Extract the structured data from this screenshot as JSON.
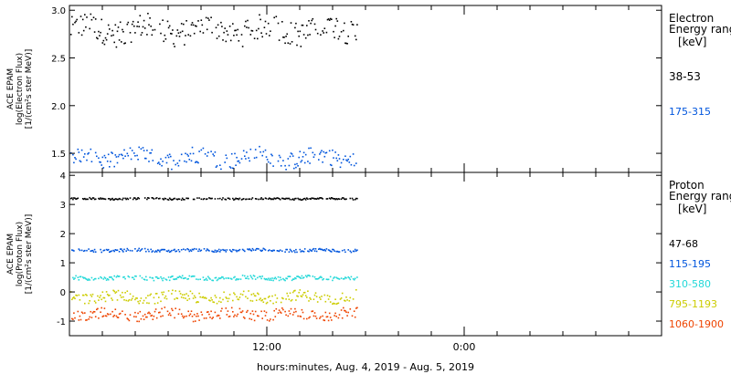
{
  "xaxis": {
    "label": "hours:minutes, Aug.  4, 2019 - Aug.  5, 2019",
    "range_hours": [
      0,
      36
    ],
    "ticks": [
      {
        "hour": 12,
        "label": "12:00"
      },
      {
        "hour": 24,
        "label": "0:00"
      }
    ],
    "data_end_hour": 17.5
  },
  "chart_data": [
    {
      "type": "scatter",
      "panel": "electron",
      "ylabel_lines": [
        "ACE EPAM",
        "log(Electron Flux)",
        "[1/(cm²s ster MeV)]"
      ],
      "ylim": [
        1.3,
        3.05
      ],
      "yticks": [
        1.5,
        2.0,
        2.5,
        3.0
      ],
      "ytick_labels": [
        "1.5",
        "2.0",
        "2.5",
        "3.0"
      ],
      "legend_title": [
        "Electron",
        "Energy ranges",
        "[keV]"
      ],
      "series": [
        {
          "name": "38-53",
          "color": "#000000",
          "center": 2.8,
          "spread": 0.13
        },
        {
          "name": "175-315",
          "color": "#0055dd",
          "center": 1.46,
          "spread": 0.09
        }
      ]
    },
    {
      "type": "scatter",
      "panel": "proton",
      "ylabel_lines": [
        "ACE EPAM",
        "log(Proton Flux)",
        "[1/(cm²s ster MeV)]"
      ],
      "ylim": [
        -1.5,
        4.1
      ],
      "yticks": [
        -1,
        0,
        1,
        2,
        3,
        4
      ],
      "ytick_labels": [
        "-1",
        "0",
        "1",
        "2",
        "3",
        "4"
      ],
      "legend_title": [
        "Proton",
        "Energy ranges",
        "[keV]"
      ],
      "series": [
        {
          "name": "47-68",
          "color": "#000000",
          "center": 3.22,
          "spread": 0.03
        },
        {
          "name": "115-195",
          "color": "#0055dd",
          "center": 1.45,
          "spread": 0.05
        },
        {
          "name": "310-580",
          "color": "#22d8d8",
          "center": 0.5,
          "spread": 0.07
        },
        {
          "name": "795-1193",
          "color": "#cccc00",
          "center": -0.15,
          "spread": 0.18
        },
        {
          "name": "1060-1900",
          "color": "#ee4400",
          "center": -0.75,
          "spread": 0.18
        }
      ]
    }
  ]
}
